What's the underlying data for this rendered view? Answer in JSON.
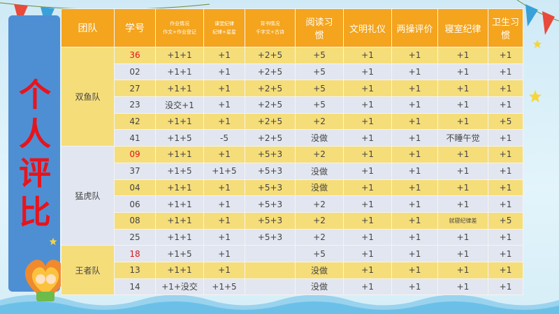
{
  "title": "个人评比",
  "colors": {
    "header": "#f4a41d",
    "row_yellow": "#f5dd79",
    "row_blue": "#e2e6f0",
    "title_red": "#e8141c",
    "side_panel": "#4e8fd4"
  },
  "headers": {
    "team": "团队",
    "id": "学号",
    "homework_line1": "作业情况",
    "homework_line2": "作文+作业登记",
    "class_line1": "课堂纪律",
    "class_line2": "纪律+星星",
    "recite_line1": "背书情况",
    "recite_line2": "千字文+古诗",
    "reading_line1": "阅读习",
    "reading_line2": "惯",
    "civility": "文明礼仪",
    "exercise": "两操评价",
    "dorm": "寝室纪律",
    "hygiene_line1": "卫生习",
    "hygiene_line2": "惯"
  },
  "teams": [
    "双鱼队",
    "猛虎队",
    "王者队"
  ],
  "rows": [
    {
      "id": "36",
      "homework": "+1+1",
      "class": "+1",
      "recite": "+2+5",
      "reading": "+5",
      "civility": "+1",
      "exercise": "+1",
      "dorm": "+1",
      "hygiene": "+1"
    },
    {
      "id": "02",
      "homework": "+1+1",
      "class": "+1",
      "recite": "+2+5",
      "reading": "+5",
      "civility": "+1",
      "exercise": "+1",
      "dorm": "+1",
      "hygiene": "+1"
    },
    {
      "id": "27",
      "homework": "+1+1",
      "class": "+1",
      "recite": "+2+5",
      "reading": "+5",
      "civility": "+1",
      "exercise": "+1",
      "dorm": "+1",
      "hygiene": "+1"
    },
    {
      "id": "23",
      "homework": "没交+1",
      "class": "+1",
      "recite": "+2+5",
      "reading": "+5",
      "civility": "+1",
      "exercise": "+1",
      "dorm": "+1",
      "hygiene": "+1"
    },
    {
      "id": "42",
      "homework": "+1+1",
      "class": "+1",
      "recite": "+2+5",
      "reading": "+2",
      "civility": "+1",
      "exercise": "+1",
      "dorm": "+1",
      "hygiene": "+5"
    },
    {
      "id": "41",
      "homework": "+1+5",
      "class": "-5",
      "recite": "+2+5",
      "reading": "没做",
      "civility": "+1",
      "exercise": "+1",
      "dorm": "不睡午觉",
      "hygiene": "+1"
    },
    {
      "id": "09",
      "homework": "+1+1",
      "class": "+1",
      "recite": "+5+3",
      "reading": "+2",
      "civility": "+1",
      "exercise": "+1",
      "dorm": "+1",
      "hygiene": "+1"
    },
    {
      "id": "37",
      "homework": "+1+5",
      "class": "+1+5",
      "recite": "+5+3",
      "reading": "没做",
      "civility": "+1",
      "exercise": "+1",
      "dorm": "+1",
      "hygiene": "+1"
    },
    {
      "id": "04",
      "homework": "+1+1",
      "class": "+1",
      "recite": "+5+3",
      "reading": "没做",
      "civility": "+1",
      "exercise": "+1",
      "dorm": "+1",
      "hygiene": "+1"
    },
    {
      "id": "06",
      "homework": "+1+1",
      "class": "+1",
      "recite": "+5+3",
      "reading": "+2",
      "civility": "+1",
      "exercise": "+1",
      "dorm": "+1",
      "hygiene": "+1"
    },
    {
      "id": "08",
      "homework": "+1+1",
      "class": "+1",
      "recite": "+5+3",
      "reading": "+2",
      "civility": "+1",
      "exercise": "+1",
      "dorm": "就寝纪律差",
      "hygiene": "+5"
    },
    {
      "id": "25",
      "homework": "+1+1",
      "class": "+1",
      "recite": "+5+3",
      "reading": "+2",
      "civility": "+1",
      "exercise": "+1",
      "dorm": "+1",
      "hygiene": "+1"
    },
    {
      "id": "18",
      "homework": "+1+5",
      "class": "+1",
      "recite": "",
      "reading": "+5",
      "civility": "+1",
      "exercise": "+1",
      "dorm": "+1",
      "hygiene": "+1"
    },
    {
      "id": "13",
      "homework": "+1+1",
      "class": "+1",
      "recite": "",
      "reading": "没做",
      "civility": "+1",
      "exercise": "+1",
      "dorm": "+1",
      "hygiene": "+1"
    },
    {
      "id": "14",
      "homework": "+1+没交",
      "class": "+1+5",
      "recite": "",
      "reading": "没做",
      "civility": "+1",
      "exercise": "+1",
      "dorm": "+1",
      "hygiene": "+1"
    }
  ]
}
